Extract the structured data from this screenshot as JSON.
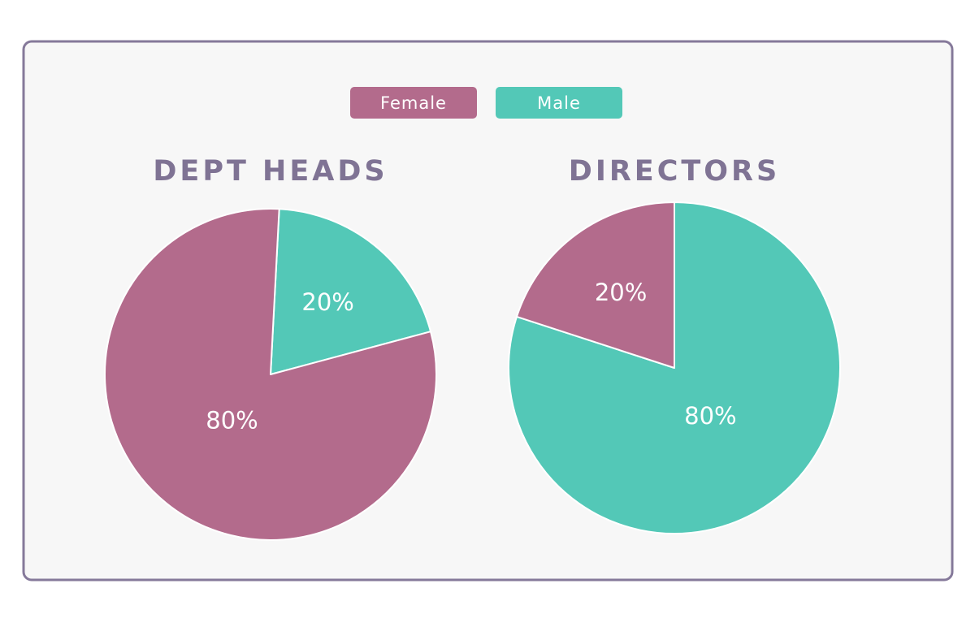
{
  "chart_data": [
    {
      "type": "pie",
      "title": "DEPT HEADS",
      "categories": [
        "Female",
        "Male"
      ],
      "values": [
        80,
        20
      ],
      "value_labels": [
        "80%",
        "20%"
      ],
      "colors": [
        "#b36b8c",
        "#53c8b7"
      ]
    },
    {
      "type": "pie",
      "title": "DIRECTORS",
      "categories": [
        "Female",
        "Male"
      ],
      "values": [
        20,
        80
      ],
      "value_labels": [
        "20%",
        "80%"
      ],
      "colors": [
        "#b36b8c",
        "#53c8b7"
      ]
    }
  ]
}
